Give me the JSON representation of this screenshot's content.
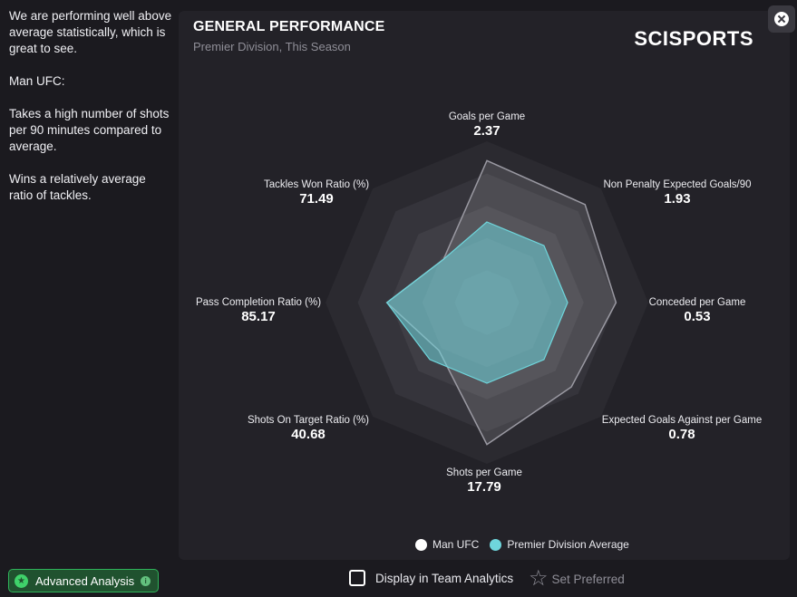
{
  "sidebar": {
    "paragraphs": [
      "We are performing well above average statistically, which is great to see.",
      "Man UFC:",
      "Takes a high number of shots per 90 minutes compared to average.",
      "Wins a relatively average ratio of tackles."
    ]
  },
  "panel": {
    "title": "GENERAL PERFORMANCE",
    "subtitle": "Premier Division, This Season",
    "logo": "SCISPORTS"
  },
  "close_icon": "close-icon",
  "chart_data": {
    "type": "radar",
    "title": "GENERAL PERFORMANCE",
    "subtitle": "Premier Division, This Season",
    "axes": [
      {
        "label": "Goals per Game",
        "value": "2.37"
      },
      {
        "label": "Non Penalty Expected Goals/90",
        "value": "1.93"
      },
      {
        "label": "Conceded per Game",
        "value": "0.53"
      },
      {
        "label": "Expected Goals Against per Game",
        "value": "0.78"
      },
      {
        "label": "Shots per Game",
        "value": "17.79"
      },
      {
        "label": "Shots On Target Ratio (%)",
        "value": "40.68"
      },
      {
        "label": "Pass Completion Ratio (%)",
        "value": "85.17"
      },
      {
        "label": "Tackles Won Ratio (%)",
        "value": "71.49"
      }
    ],
    "rings": 5,
    "series": [
      {
        "name": "Man UFC",
        "color": "#ffffff",
        "normalized": [
          0.88,
          0.86,
          0.8,
          0.74,
          0.88,
          0.42,
          0.62,
          0.38
        ]
      },
      {
        "name": "Premier Division Average",
        "color": "#6fd6dc",
        "normalized": [
          0.5,
          0.5,
          0.5,
          0.5,
          0.5,
          0.5,
          0.62,
          0.38
        ]
      }
    ],
    "legend_position": "bottom"
  },
  "bottom": {
    "advanced_analysis": "Advanced Analysis",
    "display_team": "Display in Team Analytics",
    "set_preferred": "Set Preferred",
    "accent": "#2fb35a"
  }
}
